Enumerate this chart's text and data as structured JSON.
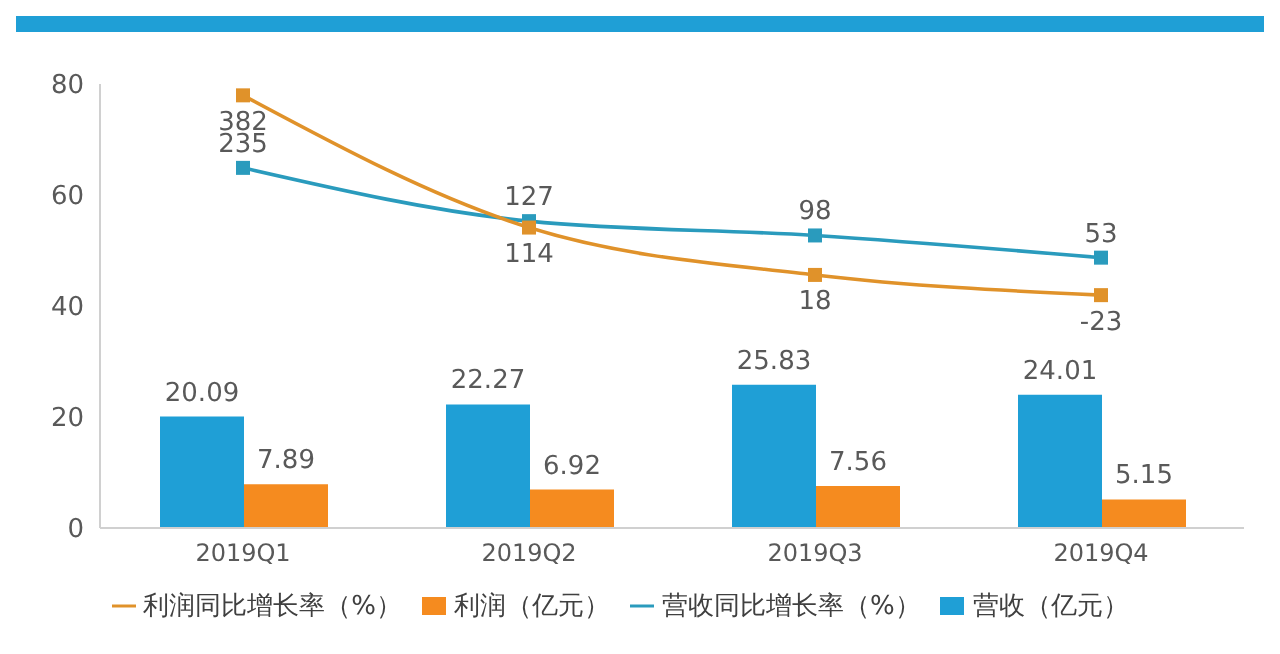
{
  "chart_data": {
    "type": "bar",
    "categories": [
      "2019Q1",
      "2019Q2",
      "2019Q3",
      "2019Q4"
    ],
    "series": [
      {
        "name": "营收（亿元）",
        "color": "#1f9fd6",
        "values": [
          20.09,
          22.27,
          25.83,
          24.01
        ]
      },
      {
        "name": "利润（亿元）",
        "color": "#f58b1f",
        "values": [
          7.89,
          6.92,
          7.56,
          5.15
        ]
      },
      {
        "name": "营收同比增长率（%）",
        "type": "line",
        "axis": "y2",
        "color": "#2a9bbd",
        "values": [
          235,
          127,
          98,
          53
        ]
      },
      {
        "name": "利润同比增长率（%）",
        "type": "line",
        "axis": "y2",
        "color": "#e0922a",
        "values": [
          382,
          114,
          18,
          -23
        ]
      }
    ],
    "ylim": [
      0,
      80
    ],
    "yticks": [
      0,
      20,
      40,
      60,
      80
    ],
    "y2lim": [
      -495,
      405
    ],
    "data_labels": true,
    "legend": "bottom",
    "grid": false,
    "marker": "square",
    "line_style": "solid"
  }
}
